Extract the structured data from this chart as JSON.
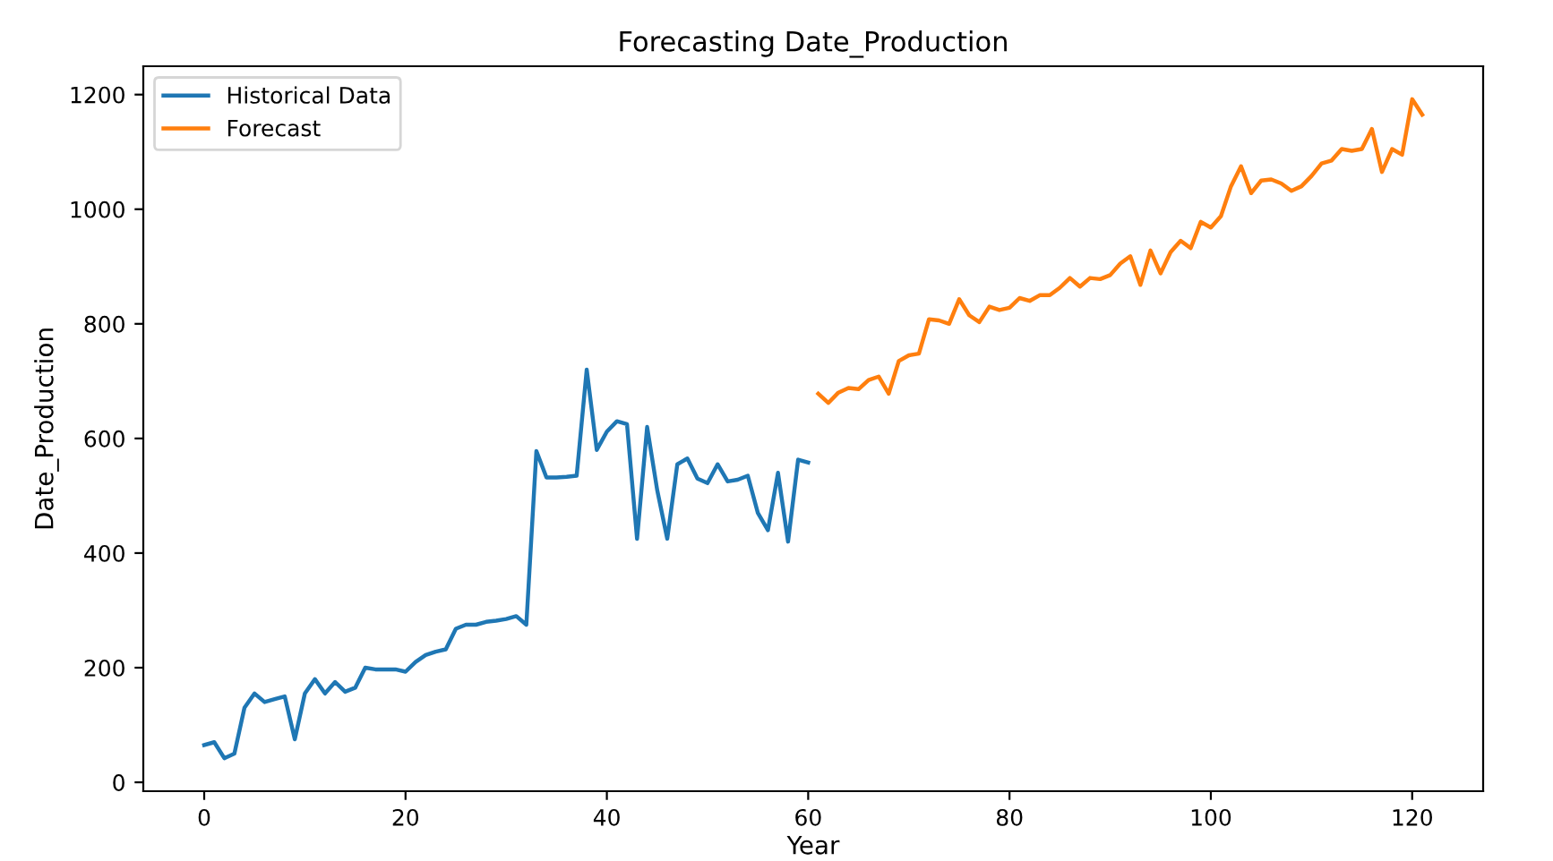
{
  "chart_data": {
    "type": "line",
    "title": "Forecasting Date_Production",
    "xlabel": "Year",
    "ylabel": "Date_Production",
    "xlim": [
      -6.05,
      127.05
    ],
    "xticks": [
      0,
      20,
      40,
      60,
      80,
      100,
      120
    ],
    "ylim": [
      -15.5,
      1249.5
    ],
    "yticks": [
      0,
      200,
      400,
      600,
      800,
      1000,
      1200
    ],
    "legend": "top left",
    "grid": false,
    "series": [
      {
        "name": "Historical Data",
        "color": "#1f77b4",
        "x": [
          0,
          1,
          2,
          3,
          4,
          5,
          6,
          7,
          8,
          9,
          10,
          11,
          12,
          13,
          14,
          15,
          16,
          17,
          18,
          19,
          20,
          21,
          22,
          23,
          24,
          25,
          26,
          27,
          28,
          29,
          30,
          31,
          32,
          33,
          34,
          35,
          36,
          37,
          38,
          39,
          40,
          41,
          42,
          43,
          44,
          45,
          46,
          47,
          48,
          49,
          50,
          51,
          52,
          53,
          54,
          55,
          56,
          57,
          58,
          59,
          60
        ],
        "values": [
          65,
          70,
          42,
          50,
          130,
          155,
          140,
          145,
          150,
          75,
          155,
          180,
          155,
          175,
          158,
          165,
          200,
          197,
          197,
          197,
          193,
          210,
          222,
          228,
          232,
          268,
          275,
          275,
          280,
          282,
          285,
          290,
          275,
          578,
          532,
          532,
          533,
          535,
          720,
          580,
          612,
          630,
          625,
          425,
          620,
          510,
          425,
          555,
          565,
          530,
          522,
          555,
          525,
          528,
          535,
          470,
          440,
          540,
          420,
          563,
          558
        ]
      },
      {
        "name": "Forecast",
        "color": "#ff7f0e",
        "x": [
          61,
          62,
          63,
          64,
          65,
          66,
          67,
          68,
          69,
          70,
          71,
          72,
          73,
          74,
          75,
          76,
          77,
          78,
          79,
          80,
          81,
          82,
          83,
          84,
          85,
          86,
          87,
          88,
          89,
          90,
          91,
          92,
          93,
          94,
          95,
          96,
          97,
          98,
          99,
          100,
          101,
          102,
          103,
          104,
          105,
          106,
          107,
          108,
          109,
          110,
          111,
          112,
          113,
          114,
          115,
          116,
          117,
          118,
          119,
          120,
          121
        ],
        "values": [
          678,
          662,
          680,
          688,
          686,
          702,
          708,
          678,
          735,
          745,
          748,
          808,
          806,
          800,
          843,
          815,
          803,
          830,
          824,
          828,
          845,
          840,
          850,
          850,
          863,
          880,
          865,
          880,
          878,
          885,
          905,
          918,
          868,
          928,
          888,
          925,
          945,
          932,
          978,
          968,
          988,
          1040,
          1075,
          1028,
          1050,
          1052,
          1045,
          1032,
          1040,
          1058,
          1080,
          1085,
          1105,
          1102,
          1105,
          1140,
          1065,
          1105,
          1095,
          1192,
          1165
        ]
      }
    ]
  }
}
